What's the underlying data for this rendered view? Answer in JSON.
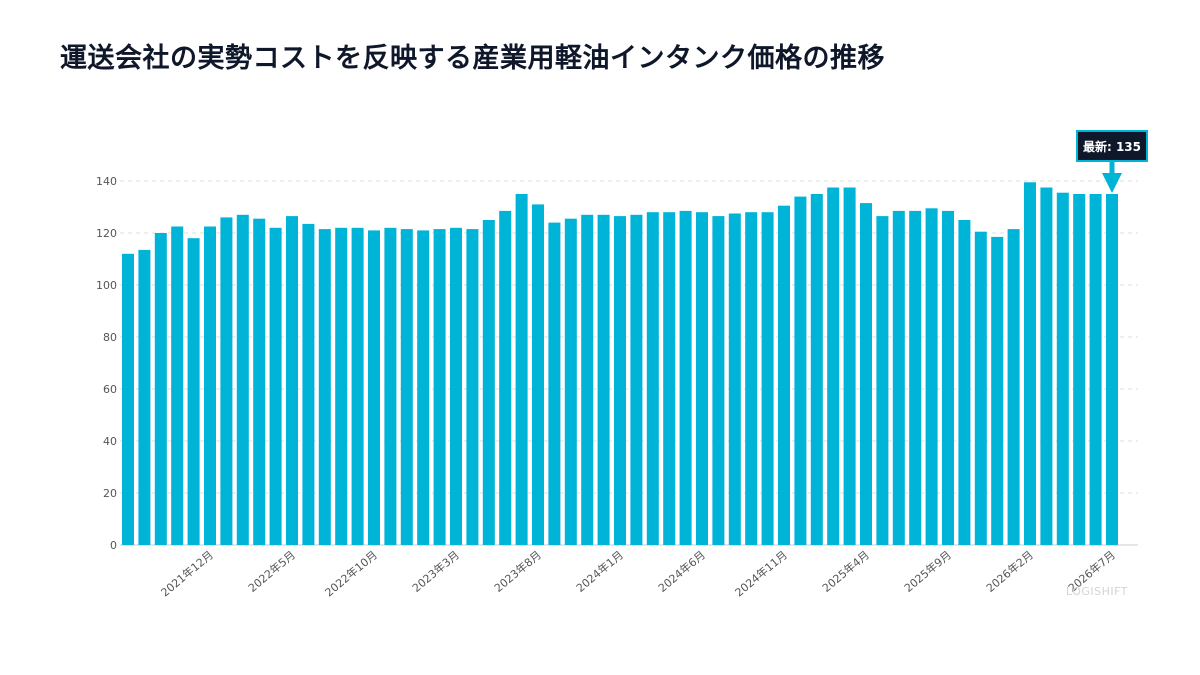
{
  "chart_data": {
    "type": "bar",
    "title": "運送会社の実勢コストを反映する産業用軽油インタンク価格の推移",
    "xlabel": "",
    "ylabel": "",
    "ylim": [
      0,
      140
    ],
    "y_ticks": [
      0,
      20,
      40,
      60,
      80,
      100,
      120,
      140
    ],
    "grid": true,
    "bar_color": "#00b4d8",
    "categories": [
      "2021年7月",
      "2021年8月",
      "2021年9月",
      "2021年10月",
      "2021年11月",
      "2021年12月",
      "2022年1月",
      "2022年2月",
      "2022年3月",
      "2022年4月",
      "2022年5月",
      "2022年6月",
      "2022年7月",
      "2022年8月",
      "2022年9月",
      "2022年10月",
      "2022年11月",
      "2022年12月",
      "2023年1月",
      "2023年2月",
      "2023年3月",
      "2023年4月",
      "2023年5月",
      "2023年6月",
      "2023年7月",
      "2023年8月",
      "2023年9月",
      "2023年10月",
      "2023年11月",
      "2023年12月",
      "2024年1月",
      "2024年2月",
      "2024年3月",
      "2024年4月",
      "2024年5月",
      "2024年6月",
      "2024年7月",
      "2024年8月",
      "2024年9月",
      "2024年10月",
      "2024年11月",
      "2024年12月",
      "2025年1月",
      "2025年2月",
      "2025年3月",
      "2025年4月",
      "2025年5月",
      "2025年6月",
      "2025年7月",
      "2025年8月",
      "2025年9月",
      "2025年10月",
      "2025年11月",
      "2025年12月",
      "2026年1月",
      "2026年2月",
      "2026年3月",
      "2026年4月",
      "2026年5月",
      "2026年6月",
      "2026年7月"
    ],
    "values": [
      112,
      113.5,
      120,
      122.5,
      118,
      122.5,
      126,
      127,
      125.5,
      122,
      126.5,
      123.5,
      121.5,
      122,
      122,
      121,
      122,
      121.5,
      121,
      121.5,
      122,
      121.5,
      125,
      128.5,
      135,
      131,
      124,
      125.5,
      127,
      127,
      126.5,
      127,
      128,
      128,
      128.5,
      128,
      126.5,
      127.5,
      128,
      128,
      130.5,
      134,
      135,
      137.5,
      137.5,
      131.5,
      126.5,
      128.5,
      128.5,
      129.5,
      128.5,
      125,
      120.5,
      118.5,
      121.5,
      139.5,
      137.5,
      135.5,
      135,
      135,
      135
    ],
    "x_tick_labels": [
      {
        "index": 5,
        "label": "2021年12月"
      },
      {
        "index": 10,
        "label": "2022年5月"
      },
      {
        "index": 15,
        "label": "2022年10月"
      },
      {
        "index": 20,
        "label": "2023年3月"
      },
      {
        "index": 25,
        "label": "2023年8月"
      },
      {
        "index": 30,
        "label": "2024年1月"
      },
      {
        "index": 35,
        "label": "2024年6月"
      },
      {
        "index": 40,
        "label": "2024年11月"
      },
      {
        "index": 45,
        "label": "2025年4月"
      },
      {
        "index": 50,
        "label": "2025年9月"
      },
      {
        "index": 55,
        "label": "2026年2月"
      },
      {
        "index": 60,
        "label": "2026年7月"
      }
    ],
    "annotation": {
      "text": "最新: 135",
      "index": 60,
      "box_color": "#0f172a",
      "border_color": "#00b4d8"
    },
    "watermark": "LOGISHIFT"
  }
}
